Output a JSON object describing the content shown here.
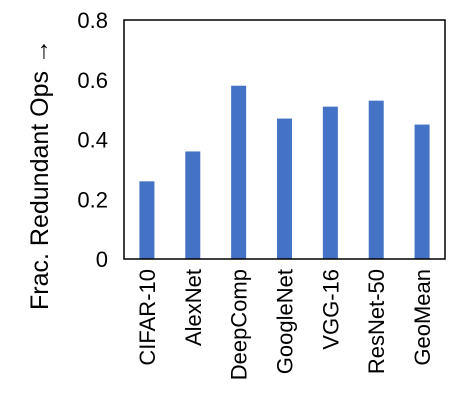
{
  "chart_data": {
    "type": "bar",
    "categories": [
      "CIFAR-10",
      "AlexNet",
      "DeepComp",
      "GoogleNet",
      "VGG-16",
      "ResNet-50",
      "GeoMean"
    ],
    "values": [
      0.26,
      0.36,
      0.58,
      0.47,
      0.51,
      0.53,
      0.45
    ],
    "title": "",
    "xlabel": "",
    "ylabel": "Frac. Redundant Ops →",
    "ylim": [
      0,
      0.8
    ],
    "yticks": [
      "0",
      "0.2",
      "0.4",
      "0.6",
      "0.8"
    ],
    "grid": false,
    "legend": "none",
    "bar_color": "#4472C4",
    "axis_color": "#000000"
  }
}
